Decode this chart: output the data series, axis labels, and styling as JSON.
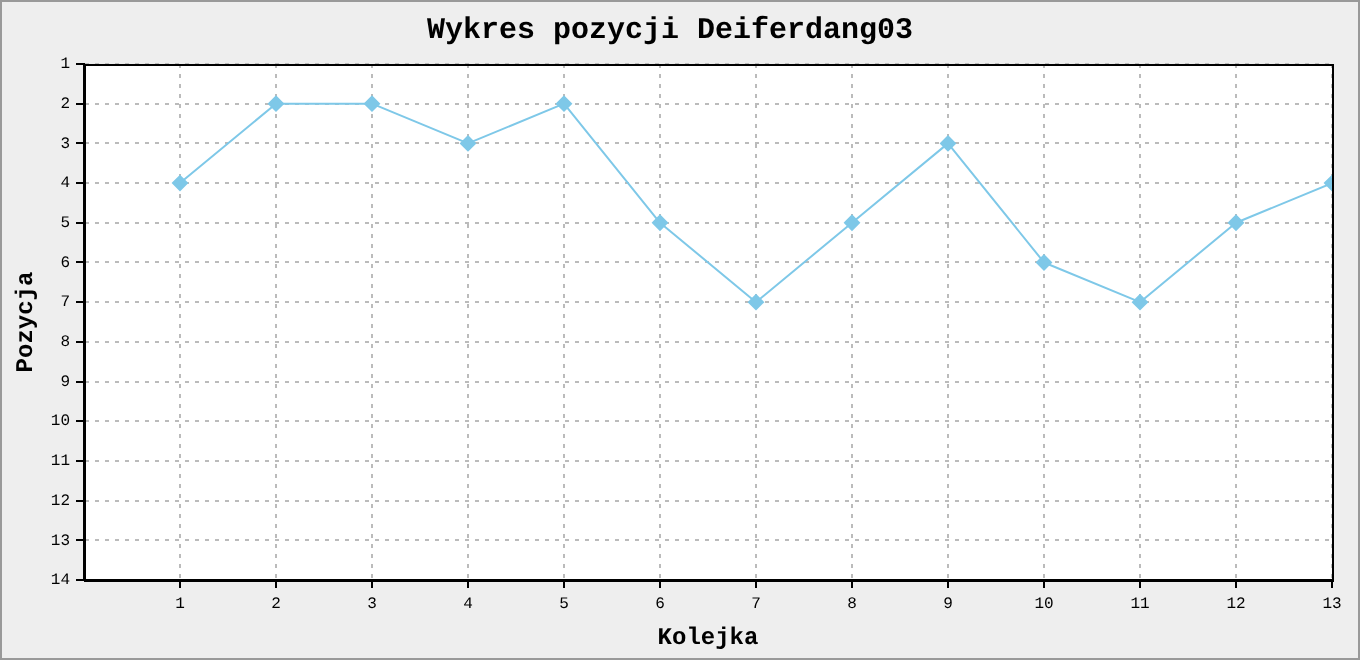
{
  "chart_data": {
    "type": "line",
    "title": "Wykres pozycji Deiferdang03",
    "xlabel": "Kolejka",
    "ylabel": "Pozycja",
    "x": [
      1,
      2,
      3,
      4,
      5,
      6,
      7,
      8,
      9,
      10,
      11,
      12,
      13
    ],
    "series": [
      {
        "color": "#7ec8e8",
        "values": [
          4,
          2,
          2,
          3,
          2,
          5,
          7,
          5,
          3,
          6,
          7,
          5,
          4
        ]
      }
    ],
    "xlim": [
      0,
      13
    ],
    "xticks": [
      1,
      2,
      3,
      4,
      5,
      6,
      7,
      8,
      9,
      10,
      11,
      12,
      13
    ],
    "ylim": [
      14,
      1
    ],
    "yticks": [
      1,
      2,
      3,
      4,
      5,
      6,
      7,
      8,
      9,
      10,
      11,
      12,
      13,
      14
    ],
    "grid": true,
    "legend": false,
    "marker": "diamond",
    "line_style": "solid"
  }
}
